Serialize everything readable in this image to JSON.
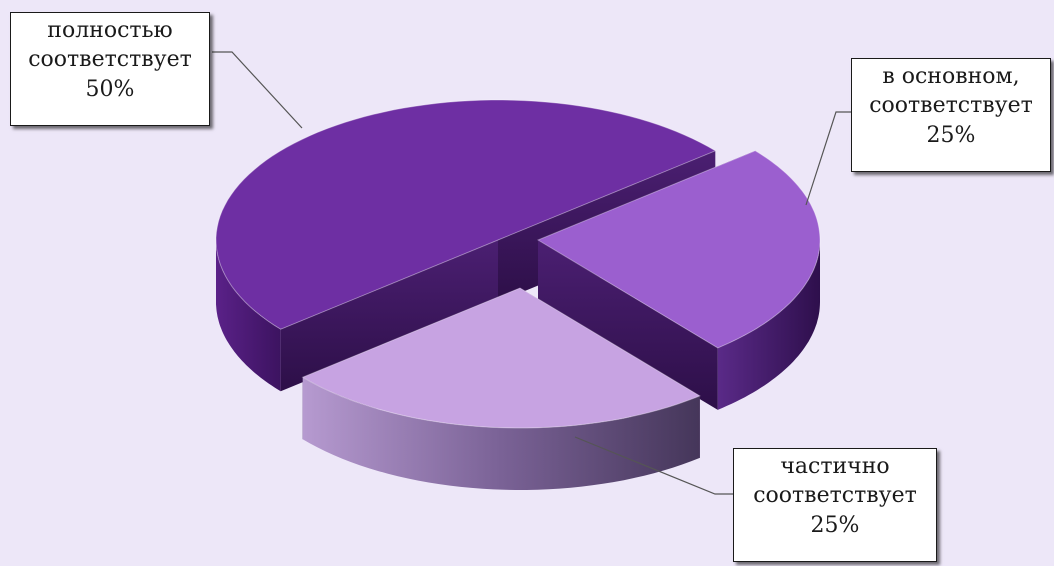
{
  "chart_data": {
    "type": "pie",
    "style": "3d-exploded",
    "slices": [
      {
        "label": "полностью соответствует",
        "label_lines": [
          "полностью",
          "соответствует"
        ],
        "value": 50,
        "value_label": "50%",
        "color": "#6e2fa3"
      },
      {
        "label": "в основном, соответствует",
        "label_lines": [
          "в основном,",
          "соответствует"
        ],
        "value": 25,
        "value_label": "25%",
        "color": "#9b5fcf"
      },
      {
        "label": "частично соответствует",
        "label_lines": [
          "частично",
          "соответствует"
        ],
        "value": 25,
        "value_label": "25%",
        "color": "#c7a3e2"
      }
    ],
    "title": "",
    "legend": "none",
    "data_labels": "callouts"
  },
  "colors": {
    "background": "#ede7f8",
    "leader_line": "#555555"
  }
}
